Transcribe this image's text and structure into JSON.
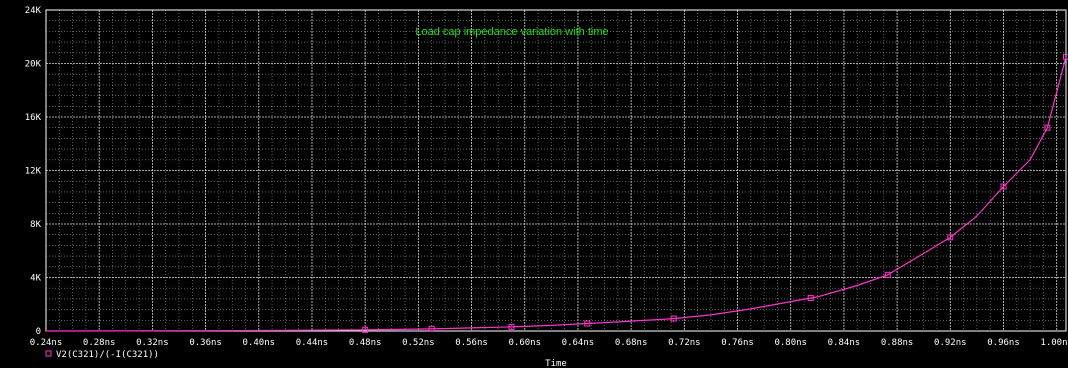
{
  "chart_data": {
    "type": "line",
    "title": "Load cap impedance variation with time",
    "xlabel": "Time",
    "ylabel": "",
    "xlim": [
      0.24,
      1.007
    ],
    "ylim": [
      0,
      24000
    ],
    "x_ticks": [
      "0.24ns",
      "0.28ns",
      "0.32ns",
      "0.36ns",
      "0.40ns",
      "0.44ns",
      "0.48ns",
      "0.52ns",
      "0.56ns",
      "0.60ns",
      "0.64ns",
      "0.68ns",
      "0.72ns",
      "0.76ns",
      "0.80ns",
      "0.84ns",
      "0.88ns",
      "0.92ns",
      "0.96ns",
      "1.00ns"
    ],
    "x_tick_values": [
      0.24,
      0.28,
      0.32,
      0.36,
      0.4,
      0.44,
      0.48,
      0.52,
      0.56,
      0.6,
      0.64,
      0.68,
      0.72,
      0.76,
      0.8,
      0.84,
      0.88,
      0.92,
      0.96,
      1.0
    ],
    "y_ticks": [
      "0",
      "4K",
      "8K",
      "12K",
      "16K",
      "20K",
      "24K"
    ],
    "y_tick_values": [
      0,
      4000,
      8000,
      12000,
      16000,
      20000,
      24000
    ],
    "grid": true,
    "legend_position": "bottom-left",
    "series": [
      {
        "name": "V2(C321)/(-I(C321))",
        "color": "#ff33cc",
        "marker": "square",
        "x": [
          0.24,
          0.3,
          0.36,
          0.42,
          0.48,
          0.5,
          0.53,
          0.56,
          0.59,
          0.62,
          0.647,
          0.67,
          0.7,
          0.712,
          0.74,
          0.77,
          0.8,
          0.82,
          0.85,
          0.873,
          0.9,
          0.92,
          0.94,
          0.96,
          0.98,
          0.993,
          1.007
        ],
        "y": [
          0,
          5,
          20,
          50,
          90,
          110,
          160,
          230,
          310,
          420,
          560,
          680,
          850,
          930,
          1200,
          1650,
          2200,
          2550,
          3400,
          4200,
          5800,
          7000,
          8600,
          10800,
          12800,
          15200,
          20500
        ],
        "marker_x": [
          0.48,
          0.53,
          0.59,
          0.647,
          0.712,
          0.815,
          0.873,
          0.92,
          0.96,
          0.993,
          1.007
        ]
      }
    ]
  }
}
